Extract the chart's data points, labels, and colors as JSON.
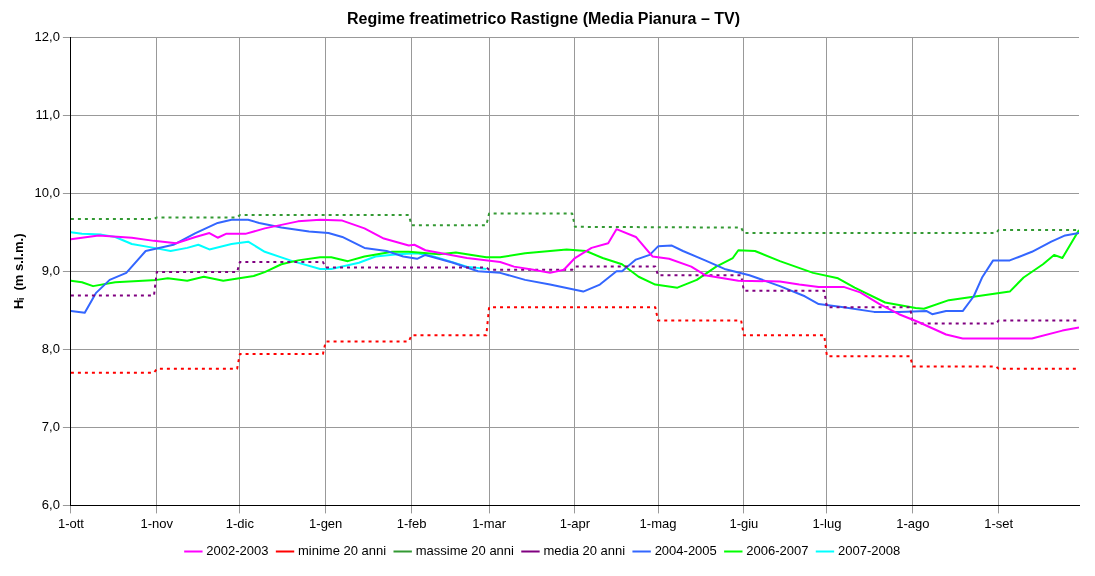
{
  "chart_data": {
    "type": "line",
    "title": "Regime freatimetrico Rastigne (Media Pianura – TV)",
    "ylabel": "Hᵢ  (m s.l.m.)",
    "xlim": [
      "2001-10-01",
      "2002-09-30"
    ],
    "xticks": [
      {
        "value": "2001-10-01",
        "label": "1-ott"
      },
      {
        "value": "2001-11-01",
        "label": "1-nov"
      },
      {
        "value": "2001-12-01",
        "label": "1-dic"
      },
      {
        "value": "2002-01-01",
        "label": "1-gen"
      },
      {
        "value": "2002-02-01",
        "label": "1-feb"
      },
      {
        "value": "2002-03-01",
        "label": "1-mar"
      },
      {
        "value": "2002-04-01",
        "label": "1-apr"
      },
      {
        "value": "2002-05-01",
        "label": "1-mag"
      },
      {
        "value": "2002-06-01",
        "label": "1-giu"
      },
      {
        "value": "2002-07-01",
        "label": "1-lug"
      },
      {
        "value": "2002-08-01",
        "label": "1-ago"
      },
      {
        "value": "2002-09-01",
        "label": "1-set"
      }
    ],
    "ylim": [
      6,
      12
    ],
    "yticks": [
      {
        "value": 6,
        "label": "6,0"
      },
      {
        "value": 7,
        "label": "7,0"
      },
      {
        "value": 8,
        "label": "8,0"
      },
      {
        "value": 9,
        "label": "9,0"
      },
      {
        "value": 10,
        "label": "10,0"
      },
      {
        "value": 11,
        "label": "11,0"
      },
      {
        "value": 12,
        "label": "12,0"
      }
    ],
    "grid": true,
    "legend": "bottom",
    "marker": "none",
    "series": [
      {
        "name": "2002-2003",
        "color": "#ff00ff",
        "x": [
          "2001-10-01",
          "2001-10-11",
          "2001-10-23",
          "2001-10-31",
          "2001-11-08",
          "2001-11-15",
          "2001-11-20",
          "2001-11-23",
          "2001-11-26",
          "2001-12-03",
          "2001-12-10",
          "2001-12-22",
          "2001-12-30",
          "2002-01-07",
          "2002-01-15",
          "2002-01-22",
          "2002-01-31",
          "2002-02-02",
          "2002-02-06",
          "2002-02-21",
          "2002-03-05",
          "2002-03-10",
          "2002-03-17",
          "2002-03-23",
          "2002-03-28",
          "2002-04-01",
          "2002-04-07",
          "2002-04-13",
          "2002-04-16",
          "2002-04-23",
          "2002-04-29",
          "2002-05-05",
          "2002-05-13",
          "2002-05-18",
          "2002-05-30",
          "2002-06-14",
          "2002-06-21",
          "2002-06-28",
          "2002-07-07",
          "2002-07-13",
          "2002-07-20",
          "2002-07-27",
          "2002-08-03",
          "2002-08-13",
          "2002-08-19",
          "2002-09-13",
          "2002-09-24",
          "2002-09-30"
        ],
        "values": [
          9.41,
          9.46,
          9.43,
          9.39,
          9.36,
          9.44,
          9.49,
          9.43,
          9.48,
          9.48,
          9.55,
          9.64,
          9.66,
          9.65,
          9.55,
          9.42,
          9.33,
          9.34,
          9.27,
          9.17,
          9.12,
          9.06,
          9.02,
          8.98,
          9.02,
          9.17,
          9.3,
          9.36,
          9.54,
          9.44,
          9.19,
          9.16,
          9.06,
          8.95,
          8.88,
          8.87,
          8.83,
          8.8,
          8.8,
          8.73,
          8.58,
          8.45,
          8.35,
          8.19,
          8.14,
          8.14,
          8.24,
          8.28
        ]
      },
      {
        "name": "minime 20 anni",
        "color": "#ff0000",
        "line_style": "dotted",
        "x": [
          "2001-10-01",
          "2001-10-31",
          "2001-11-01",
          "2001-11-30",
          "2001-12-01",
          "2001-12-31",
          "2002-01-01",
          "2002-01-31",
          "2002-02-01",
          "2002-02-28",
          "2002-03-01",
          "2002-03-31",
          "2002-04-01",
          "2002-04-30",
          "2002-05-01",
          "2002-05-31",
          "2002-06-01",
          "2002-06-30",
          "2002-07-01",
          "2002-07-31",
          "2002-08-01",
          "2002-08-31",
          "2002-09-01",
          "2002-09-30"
        ],
        "values": [
          7.7,
          7.7,
          7.75,
          7.75,
          7.94,
          7.94,
          8.1,
          8.1,
          8.18,
          8.18,
          8.54,
          8.54,
          8.54,
          8.54,
          8.37,
          8.37,
          8.18,
          8.18,
          7.91,
          7.91,
          7.78,
          7.78,
          7.75,
          7.75
        ]
      },
      {
        "name": "massime 20 anni",
        "color": "#339933",
        "line_style": "dotted",
        "x": [
          "2001-10-01",
          "2001-10-31",
          "2001-11-01",
          "2001-11-30",
          "2001-12-01",
          "2002-01-31",
          "2002-02-01",
          "2002-02-28",
          "2002-03-01",
          "2002-03-31",
          "2002-04-01",
          "2002-05-31",
          "2002-06-01",
          "2002-08-31",
          "2002-09-01",
          "2002-09-30"
        ],
        "values": [
          9.67,
          9.67,
          9.69,
          9.69,
          9.72,
          9.72,
          9.59,
          9.59,
          9.74,
          9.74,
          9.57,
          9.56,
          9.49,
          9.49,
          9.53,
          9.53
        ]
      },
      {
        "name": "media 20 anni",
        "color": "#800080",
        "line_style": "dotted",
        "x": [
          "2001-10-01",
          "2001-10-31",
          "2001-11-01",
          "2001-11-30",
          "2001-12-01",
          "2001-12-31",
          "2002-01-01",
          "2002-02-28",
          "2002-03-01",
          "2002-03-31",
          "2002-04-01",
          "2002-04-30",
          "2002-05-01",
          "2002-05-31",
          "2002-06-01",
          "2002-06-30",
          "2002-07-01",
          "2002-07-31",
          "2002-08-01",
          "2002-08-31",
          "2002-09-01",
          "2002-09-30"
        ],
        "values": [
          8.69,
          8.69,
          8.99,
          8.99,
          9.12,
          9.12,
          9.05,
          9.05,
          9.02,
          9.02,
          9.06,
          9.06,
          8.95,
          8.95,
          8.75,
          8.75,
          8.54,
          8.54,
          8.33,
          8.33,
          8.37,
          8.37
        ]
      },
      {
        "name": "2004-2005",
        "color": "#3366ff",
        "x": [
          "2001-10-01",
          "2001-10-06",
          "2001-10-10",
          "2001-10-15",
          "2001-10-21",
          "2001-10-28",
          "2001-11-07",
          "2001-11-15",
          "2001-11-23",
          "2001-11-28",
          "2001-12-04",
          "2001-12-08",
          "2001-12-16",
          "2001-12-26",
          "2002-01-02",
          "2002-01-07",
          "2002-01-15",
          "2002-01-23",
          "2002-01-29",
          "2002-02-03",
          "2002-02-06",
          "2002-02-16",
          "2002-02-25",
          "2002-03-05",
          "2002-03-14",
          "2002-03-23",
          "2002-04-04",
          "2002-04-10",
          "2002-04-16",
          "2002-04-18",
          "2002-04-23",
          "2002-04-28",
          "2002-05-01",
          "2002-05-06",
          "2002-05-10",
          "2002-05-18",
          "2002-05-25",
          "2002-06-03",
          "2002-06-14",
          "2002-06-23",
          "2002-06-28",
          "2002-07-07",
          "2002-07-18",
          "2002-07-27",
          "2002-08-06",
          "2002-08-08",
          "2002-08-13",
          "2002-08-19",
          "2002-08-23",
          "2002-08-26",
          "2002-08-30",
          "2002-09-05",
          "2002-09-08",
          "2002-09-13",
          "2002-09-20",
          "2002-09-25",
          "2002-09-30"
        ],
        "values": [
          8.49,
          8.47,
          8.72,
          8.89,
          8.98,
          9.26,
          9.34,
          9.49,
          9.62,
          9.66,
          9.66,
          9.62,
          9.56,
          9.51,
          9.49,
          9.44,
          9.3,
          9.26,
          9.19,
          9.16,
          9.21,
          9.11,
          9.0,
          8.98,
          8.89,
          8.83,
          8.74,
          8.83,
          9.0,
          9.0,
          9.15,
          9.21,
          9.32,
          9.33,
          9.26,
          9.14,
          9.03,
          8.95,
          8.81,
          8.68,
          8.58,
          8.54,
          8.48,
          8.48,
          8.49,
          8.45,
          8.49,
          8.49,
          8.68,
          8.92,
          9.14,
          9.14,
          9.18,
          9.25,
          9.38,
          9.46,
          9.49
        ]
      },
      {
        "name": "2006-2007",
        "color": "#00ff00",
        "x": [
          "2001-10-01",
          "2001-10-05",
          "2001-10-09",
          "2001-10-17",
          "2001-11-01",
          "2001-11-05",
          "2001-11-12",
          "2001-11-18",
          "2001-11-25",
          "2001-12-06",
          "2001-12-10",
          "2001-12-16",
          "2001-12-22",
          "2001-12-30",
          "2002-01-03",
          "2002-01-09",
          "2002-01-15",
          "2002-01-25",
          "2002-01-31",
          "2002-02-11",
          "2002-02-17",
          "2002-02-28",
          "2002-03-05",
          "2002-03-14",
          "2002-03-29",
          "2002-04-05",
          "2002-04-11",
          "2002-04-18",
          "2002-04-24",
          "2002-04-30",
          "2002-05-08",
          "2002-05-15",
          "2002-05-22",
          "2002-05-28",
          "2002-05-30",
          "2002-06-05",
          "2002-06-14",
          "2002-06-26",
          "2002-07-05",
          "2002-07-11",
          "2002-07-22",
          "2002-08-02",
          "2002-08-05",
          "2002-08-14",
          "2002-08-26",
          "2002-09-05",
          "2002-09-10",
          "2002-09-17",
          "2002-09-21",
          "2002-09-24",
          "2002-09-30"
        ],
        "values": [
          8.88,
          8.86,
          8.81,
          8.86,
          8.89,
          8.91,
          8.88,
          8.93,
          8.88,
          8.94,
          8.99,
          9.09,
          9.14,
          9.18,
          9.18,
          9.13,
          9.19,
          9.25,
          9.25,
          9.22,
          9.24,
          9.18,
          9.18,
          9.23,
          9.28,
          9.26,
          9.17,
          9.09,
          8.93,
          8.83,
          8.79,
          8.89,
          9.06,
          9.17,
          9.27,
          9.26,
          9.13,
          8.98,
          8.91,
          8.79,
          8.6,
          8.53,
          8.52,
          8.63,
          8.69,
          8.74,
          8.92,
          9.09,
          9.21,
          9.17,
          9.53
        ]
      },
      {
        "name": "2007-2008",
        "color": "#00ffff",
        "x": [
          "2001-10-01",
          "2001-10-05",
          "2001-10-12",
          "2001-10-17",
          "2001-10-23",
          "2001-10-31",
          "2001-11-06",
          "2001-11-12",
          "2001-11-16",
          "2001-11-20",
          "2001-11-28",
          "2001-12-04",
          "2001-12-10",
          "2001-12-20",
          "2001-12-30",
          "2002-01-03",
          "2002-01-13",
          "2002-01-19",
          "2002-01-27",
          "2002-02-03",
          "2002-02-09",
          "2002-02-21",
          "2002-02-28"
        ],
        "values": [
          9.5,
          9.48,
          9.47,
          9.44,
          9.35,
          9.3,
          9.26,
          9.3,
          9.34,
          9.28,
          9.35,
          9.38,
          9.25,
          9.13,
          9.03,
          9.03,
          9.11,
          9.19,
          9.22,
          9.23,
          9.19,
          9.06,
          9.03
        ]
      }
    ]
  }
}
